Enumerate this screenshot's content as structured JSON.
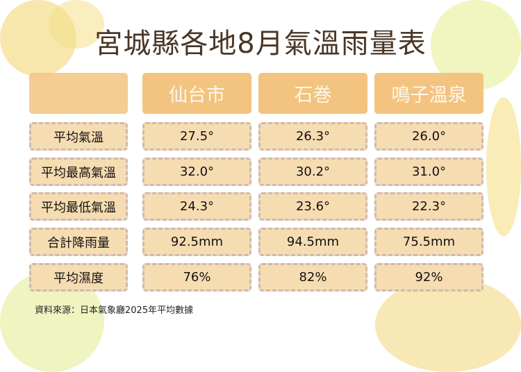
{
  "title": "宮城縣各地8月氣溫雨量表",
  "columns": [
    "",
    "仙台市",
    "石巻",
    "鳴子溫泉"
  ],
  "rows": [
    {
      "label": "平均氣溫",
      "values": [
        "27.5°",
        "26.3°",
        "26.0°"
      ]
    },
    {
      "label": "平均最高氣溫",
      "values": [
        "32.0°",
        "30.2°",
        "31.0°"
      ]
    },
    {
      "label": "平均最低氣溫",
      "values": [
        "24.3°",
        "23.6°",
        "22.3°"
      ]
    },
    {
      "label": "合計降雨量",
      "values": [
        "92.5mm",
        "94.5mm",
        "75.5mm"
      ]
    },
    {
      "label": "平均濕度",
      "values": [
        "76%",
        "82%",
        "92%"
      ]
    }
  ],
  "source": "資料來源：日本氣象廳2025年平均數據",
  "colors": {
    "header": "#f3c47f",
    "cell": "#f6dcb1",
    "title": "#4a3626"
  }
}
